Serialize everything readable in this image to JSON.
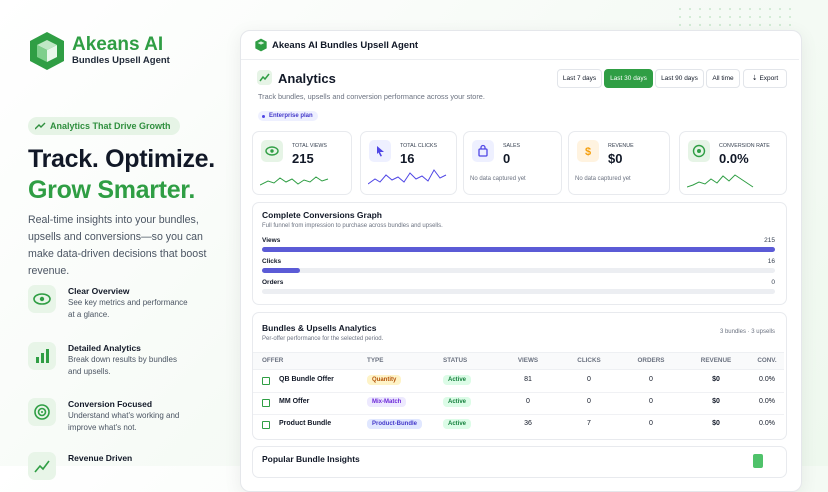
{
  "brand": {
    "name": "Akeans AI",
    "tagline": "Bundles Upsell Agent"
  },
  "hero": {
    "pill": "Analytics That Drive Growth",
    "headline_1": "Track. Optimize.",
    "headline_2": "Grow Smarter.",
    "lead": "Real-time insights into your bundles, upsells and conversions—so you can make data-driven decisions that boost revenue."
  },
  "features": [
    {
      "title": "Clear Overview",
      "desc": "See key metrics and performance at a glance."
    },
    {
      "title": "Detailed Analytics",
      "desc": "Break down results by bundles and upsells."
    },
    {
      "title": "Conversion Focused",
      "desc": "Understand what's working and improve what's not."
    },
    {
      "title": "Revenue Driven"
    }
  ],
  "app": {
    "header": "Akeans AI Bundles Upsell Agent",
    "title": "Analytics",
    "subtitle": "Track bundles, upsells and conversion performance across your store.",
    "plan": "Enterprise plan",
    "ranges": [
      "Last 7 days",
      "Last 30 days",
      "Last 90 days",
      "All time"
    ],
    "active_range": 1,
    "export": "Export"
  },
  "stats": [
    {
      "label": "TOTAL VIEWS",
      "value": "215"
    },
    {
      "label": "TOTAL CLICKS",
      "value": "16"
    },
    {
      "label": "SALES",
      "value": "0",
      "note": "No data captured yet"
    },
    {
      "label": "REVENUE",
      "value": "$0",
      "note": "No data captured yet"
    },
    {
      "label": "CONVERSION RATE",
      "value": "0.0%"
    }
  ],
  "funnel": {
    "title": "Complete Conversions Graph",
    "subtitle": "Full funnel from impression to purchase across bundles and upsells.",
    "bar_color": "#5b5bd6",
    "stages": [
      {
        "name": "Views",
        "value": 215
      },
      {
        "name": "Clicks",
        "value": 16
      },
      {
        "name": "Orders",
        "value": 0
      }
    ]
  },
  "table": {
    "title": "Bundles & Upsells Analytics",
    "subtitle": "Per-offer performance for the selected period.",
    "summary": "3 bundles · 3 upsells",
    "columns": [
      "OFFER",
      "TYPE",
      "STATUS",
      "VIEWS",
      "CLICKS",
      "ORDERS",
      "REVENUE",
      "CONV."
    ],
    "rows": [
      [
        "QB Bundle Offer",
        "Quantity",
        "Active",
        "81",
        "0",
        "0",
        "$0",
        "0.0%"
      ],
      [
        "MM Offer",
        "Mix-Match",
        "Active",
        "0",
        "0",
        "0",
        "$0",
        "0.0%"
      ],
      [
        "Product Bundle",
        "Product-Bundle",
        "Active",
        "36",
        "7",
        "0",
        "$0",
        "0.0%"
      ]
    ]
  },
  "insights": {
    "title": "Popular Bundle Insights"
  }
}
